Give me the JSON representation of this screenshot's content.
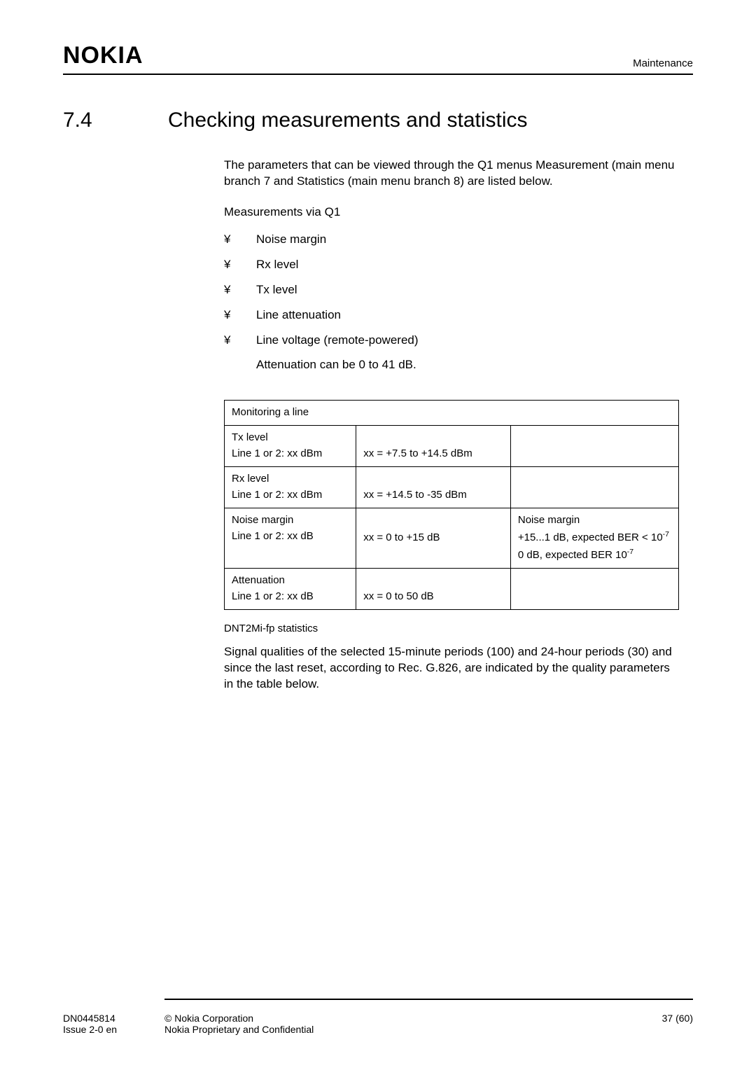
{
  "header": {
    "logo": "NOKIA",
    "label": "Maintenance"
  },
  "section": {
    "number": "7.4",
    "title": "Checking measurements and statistics"
  },
  "intro": "The parameters that can be viewed through the Q1 menus Measurement (main menu branch 7 and Statistics (main menu branch 8) are listed below.",
  "subhead": "Measurements via Q1",
  "bullets": [
    "Noise margin",
    "Rx level",
    "Tx level",
    "Line attenuation",
    "Line voltage (remote-powered)"
  ],
  "attenuation_note": "Attenuation can be 0 to 41 dB.",
  "table": {
    "caption": "Monitoring a line",
    "rows": [
      {
        "c1a": "Tx level",
        "c1b": "Line 1 or 2: xx dBm",
        "c2": "xx = +7.5 to +14.5 dBm",
        "c3": []
      },
      {
        "c1a": "Rx level",
        "c1b": "Line 1 or 2: xx dBm",
        "c2": "xx = +14.5 to -35 dBm",
        "c3": []
      },
      {
        "c1a": "Noise margin",
        "c1b": "Line 1 or 2: xx dB",
        "c2": "xx = 0 to +15 dB",
        "c3": [
          "Noise margin",
          "BER_LINE",
          "ZERO_LINE"
        ]
      },
      {
        "c1a": "Attenuation",
        "c1b": "Line 1 or 2: xx dB",
        "c2": "xx = 0 to 50 dB",
        "c3": []
      }
    ],
    "ber_line": "+15...1 dB, expected BER < 10",
    "ber_exp": "-7",
    "zero_line": "0 dB, expected BER 10",
    "zero_exp": "-7"
  },
  "stats_head": "DNT2Mi-fp statistics",
  "stats_para": "Signal qualities of the selected 15-minute periods (100) and 24-hour periods (30) and since the last reset, according to Rec. G.826, are indicated by the quality parameters in the table below.",
  "footer": {
    "left1": "DN0445814",
    "left2": "Issue 2-0 en",
    "center1": "© Nokia Corporation",
    "center2": "Nokia Proprietary and Confidential",
    "right": "37 (60)"
  }
}
